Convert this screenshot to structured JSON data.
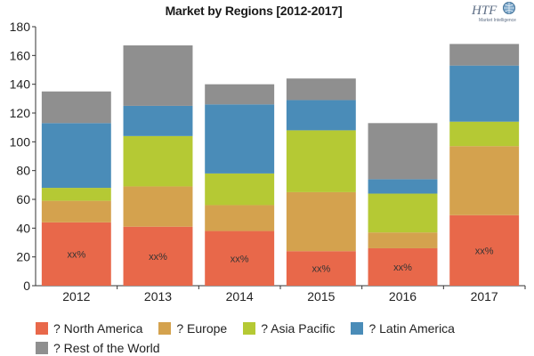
{
  "title": "Market by Regions [2012-2017]",
  "logo": {
    "text": "HTF",
    "subtext": "Market Intelligence",
    "icon": "globe-icon"
  },
  "chart_data": {
    "type": "bar",
    "stacked": true,
    "categories": [
      "2012",
      "2013",
      "2014",
      "2015",
      "2016",
      "2017"
    ],
    "ylim": [
      0,
      180
    ],
    "yticks": [
      0,
      20,
      40,
      60,
      80,
      100,
      120,
      140,
      160,
      180
    ],
    "grid": false,
    "legend_position": "bottom",
    "series": [
      {
        "name": "? North America",
        "color": "#E8684A",
        "values": [
          44,
          41,
          38,
          24,
          26,
          49
        ]
      },
      {
        "name": "? Europe",
        "color": "#D4A24E",
        "values": [
          15,
          28,
          18,
          41,
          11,
          48
        ]
      },
      {
        "name": "? Asia Pacific",
        "color": "#B5C934",
        "values": [
          9,
          35,
          22,
          43,
          27,
          17
        ]
      },
      {
        "name": "? Latin America",
        "color": "#4A8CB8",
        "values": [
          45,
          21,
          48,
          21,
          10,
          39
        ]
      },
      {
        "name": "? Rest of the World",
        "color": "#8F8F8F",
        "values": [
          22,
          42,
          14,
          15,
          39,
          15
        ]
      }
    ],
    "annotations": [
      "xx%",
      "xx%",
      "xx%",
      "xx%",
      "xx%",
      "xx%"
    ]
  }
}
